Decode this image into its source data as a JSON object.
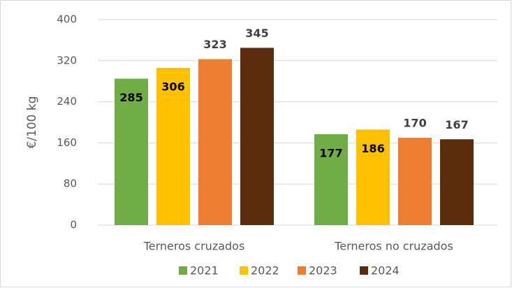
{
  "chart_data": {
    "type": "bar",
    "ylabel": "€/100 kg",
    "categories": [
      "Terneros cruzados",
      "Terneros no cruzados"
    ],
    "series": [
      {
        "name": "2021",
        "color": "#70ad47",
        "values": [
          285,
          177
        ]
      },
      {
        "name": "2022",
        "color": "#ffc000",
        "values": [
          306,
          186
        ]
      },
      {
        "name": "2023",
        "color": "#ed7d31",
        "values": [
          323,
          170
        ]
      },
      {
        "name": "2024",
        "color": "#5b2c0b",
        "values": [
          345,
          167
        ]
      }
    ],
    "ylim": [
      0,
      400
    ],
    "yticks": [
      0,
      80,
      160,
      240,
      320,
      400
    ],
    "grid": true,
    "legend": "bottom"
  }
}
